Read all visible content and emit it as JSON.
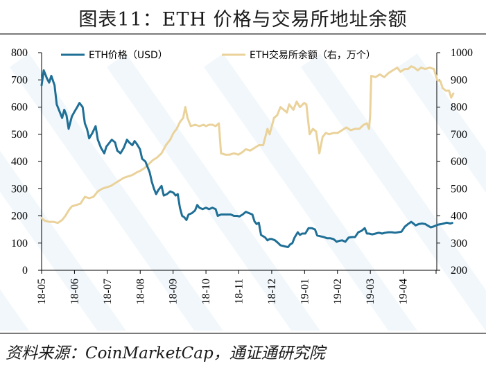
{
  "title": "图表11：ETH 价格与交易所地址余额",
  "source": "资料来源：CoinMarketCap，通证通研究院",
  "colors": {
    "price": "#1f6f96",
    "balance": "#ead29a",
    "watermark": "#e6f1f7"
  },
  "chart_data": {
    "type": "line",
    "title": "图表11：ETH 价格与交易所地址余额",
    "x_ticks": [
      "18-05",
      "18-06",
      "18-07",
      "18-08",
      "18-09",
      "18-10",
      "18-11",
      "18-12",
      "19-01",
      "19-02",
      "19-03",
      "19-04"
    ],
    "y_left": {
      "lim": [
        0,
        800
      ],
      "ticks": [
        "0",
        "100",
        "200",
        "300",
        "400",
        "500",
        "600",
        "700",
        "800"
      ]
    },
    "y_right": {
      "lim": [
        200,
        1000
      ],
      "ticks": [
        "200",
        "300",
        "400",
        "500",
        "600",
        "700",
        "800",
        "900",
        "1000"
      ]
    },
    "legend_position": "top",
    "grid": false,
    "series": [
      {
        "name": "ETH价格（USD）",
        "axis": "left",
        "points": [
          [
            "2018-05-01",
            680
          ],
          [
            "2018-05-03",
            735
          ],
          [
            "2018-05-06",
            705
          ],
          [
            "2018-05-08",
            690
          ],
          [
            "2018-05-10",
            715
          ],
          [
            "2018-05-13",
            680
          ],
          [
            "2018-05-15",
            610
          ],
          [
            "2018-05-18",
            580
          ],
          [
            "2018-05-20",
            560
          ],
          [
            "2018-05-22",
            590
          ],
          [
            "2018-05-24",
            570
          ],
          [
            "2018-05-26",
            520
          ],
          [
            "2018-05-29",
            565
          ],
          [
            "2018-05-31",
            580
          ],
          [
            "2018-06-03",
            600
          ],
          [
            "2018-06-05",
            615
          ],
          [
            "2018-06-08",
            600
          ],
          [
            "2018-06-10",
            540
          ],
          [
            "2018-06-12",
            520
          ],
          [
            "2018-06-14",
            485
          ],
          [
            "2018-06-17",
            505
          ],
          [
            "2018-06-20",
            530
          ],
          [
            "2018-06-22",
            480
          ],
          [
            "2018-06-25",
            450
          ],
          [
            "2018-06-28",
            430
          ],
          [
            "2018-06-30",
            455
          ],
          [
            "2018-07-03",
            470
          ],
          [
            "2018-07-05",
            480
          ],
          [
            "2018-07-08",
            470
          ],
          [
            "2018-07-10",
            440
          ],
          [
            "2018-07-13",
            430
          ],
          [
            "2018-07-16",
            450
          ],
          [
            "2018-07-19",
            480
          ],
          [
            "2018-07-21",
            470
          ],
          [
            "2018-07-24",
            460
          ],
          [
            "2018-07-26",
            475
          ],
          [
            "2018-07-28",
            465
          ],
          [
            "2018-07-31",
            445
          ],
          [
            "2018-08-02",
            410
          ],
          [
            "2018-08-05",
            400
          ],
          [
            "2018-08-07",
            380
          ],
          [
            "2018-08-09",
            360
          ],
          [
            "2018-08-11",
            325
          ],
          [
            "2018-08-13",
            300
          ],
          [
            "2018-08-15",
            280
          ],
          [
            "2018-08-17",
            295
          ],
          [
            "2018-08-20",
            310
          ],
          [
            "2018-08-22",
            275
          ],
          [
            "2018-08-25",
            280
          ],
          [
            "2018-08-28",
            290
          ],
          [
            "2018-08-31",
            285
          ],
          [
            "2018-09-02",
            275
          ],
          [
            "2018-09-04",
            280
          ],
          [
            "2018-09-06",
            230
          ],
          [
            "2018-09-08",
            200
          ],
          [
            "2018-09-10",
            195
          ],
          [
            "2018-09-12",
            185
          ],
          [
            "2018-09-14",
            205
          ],
          [
            "2018-09-17",
            210
          ],
          [
            "2018-09-20",
            220
          ],
          [
            "2018-09-22",
            240
          ],
          [
            "2018-09-24",
            230
          ],
          [
            "2018-09-27",
            225
          ],
          [
            "2018-09-30",
            230
          ],
          [
            "2018-10-03",
            225
          ],
          [
            "2018-10-06",
            230
          ],
          [
            "2018-10-09",
            225
          ],
          [
            "2018-10-11",
            200
          ],
          [
            "2018-10-14",
            205
          ],
          [
            "2018-10-17",
            205
          ],
          [
            "2018-10-20",
            205
          ],
          [
            "2018-10-23",
            205
          ],
          [
            "2018-10-26",
            200
          ],
          [
            "2018-10-29",
            200
          ],
          [
            "2018-10-31",
            198
          ],
          [
            "2018-11-03",
            205
          ],
          [
            "2018-11-06",
            215
          ],
          [
            "2018-11-09",
            210
          ],
          [
            "2018-11-12",
            205
          ],
          [
            "2018-11-14",
            180
          ],
          [
            "2018-11-16",
            170
          ],
          [
            "2018-11-18",
            175
          ],
          [
            "2018-11-20",
            130
          ],
          [
            "2018-11-22",
            125
          ],
          [
            "2018-11-24",
            120
          ],
          [
            "2018-11-26",
            110
          ],
          [
            "2018-11-28",
            115
          ],
          [
            "2018-11-30",
            115
          ],
          [
            "2018-12-03",
            110
          ],
          [
            "2018-12-06",
            100
          ],
          [
            "2018-12-08",
            92
          ],
          [
            "2018-12-10",
            90
          ],
          [
            "2018-12-12",
            88
          ],
          [
            "2018-12-15",
            85
          ],
          [
            "2018-12-17",
            95
          ],
          [
            "2018-12-19",
            100
          ],
          [
            "2018-12-21",
            120
          ],
          [
            "2018-12-24",
            140
          ],
          [
            "2018-12-26",
            130
          ],
          [
            "2018-12-28",
            135
          ],
          [
            "2018-12-31",
            135
          ],
          [
            "2019-01-03",
            155
          ],
          [
            "2019-01-06",
            155
          ],
          [
            "2019-01-09",
            150
          ],
          [
            "2019-01-11",
            128
          ],
          [
            "2019-01-14",
            125
          ],
          [
            "2019-01-17",
            122
          ],
          [
            "2019-01-20",
            118
          ],
          [
            "2019-01-23",
            118
          ],
          [
            "2019-01-26",
            115
          ],
          [
            "2019-01-29",
            105
          ],
          [
            "2019-01-31",
            108
          ],
          [
            "2019-02-03",
            110
          ],
          [
            "2019-02-06",
            105
          ],
          [
            "2019-02-09",
            120
          ],
          [
            "2019-02-12",
            122
          ],
          [
            "2019-02-15",
            122
          ],
          [
            "2019-02-18",
            140
          ],
          [
            "2019-02-21",
            145
          ],
          [
            "2019-02-24",
            155
          ],
          [
            "2019-02-26",
            135
          ],
          [
            "2019-02-28",
            135
          ],
          [
            "2019-03-03",
            132
          ],
          [
            "2019-03-06",
            135
          ],
          [
            "2019-03-09",
            138
          ],
          [
            "2019-03-12",
            135
          ],
          [
            "2019-03-15",
            138
          ],
          [
            "2019-03-18",
            140
          ],
          [
            "2019-03-21",
            140
          ],
          [
            "2019-03-24",
            138
          ],
          [
            "2019-03-27",
            140
          ],
          [
            "2019-03-30",
            142
          ],
          [
            "2019-04-02",
            160
          ],
          [
            "2019-04-05",
            170
          ],
          [
            "2019-04-08",
            178
          ],
          [
            "2019-04-10",
            172
          ],
          [
            "2019-04-12",
            165
          ],
          [
            "2019-04-15",
            170
          ],
          [
            "2019-04-18",
            172
          ],
          [
            "2019-04-21",
            170
          ],
          [
            "2019-04-23",
            165
          ],
          [
            "2019-04-26",
            158
          ],
          [
            "2019-04-28",
            160
          ],
          [
            "2019-04-30",
            163
          ],
          [
            "2019-05-03",
            168
          ],
          [
            "2019-05-06",
            170
          ],
          [
            "2019-05-08",
            172
          ],
          [
            "2019-05-11",
            175
          ],
          [
            "2019-05-14",
            172
          ],
          [
            "2019-05-16",
            174
          ]
        ]
      },
      {
        "name": "ETH交易所余额（右，万个）",
        "axis": "right",
        "points": [
          [
            "2018-05-01",
            392
          ],
          [
            "2018-05-04",
            382
          ],
          [
            "2018-05-08",
            378
          ],
          [
            "2018-05-12",
            378
          ],
          [
            "2018-05-16",
            374
          ],
          [
            "2018-05-20",
            385
          ],
          [
            "2018-05-23",
            400
          ],
          [
            "2018-05-26",
            420
          ],
          [
            "2018-05-29",
            435
          ],
          [
            "2018-06-02",
            440
          ],
          [
            "2018-06-06",
            445
          ],
          [
            "2018-06-10",
            470
          ],
          [
            "2018-06-14",
            465
          ],
          [
            "2018-06-18",
            470
          ],
          [
            "2018-06-22",
            490
          ],
          [
            "2018-06-26",
            500
          ],
          [
            "2018-06-30",
            505
          ],
          [
            "2018-07-04",
            510
          ],
          [
            "2018-07-08",
            520
          ],
          [
            "2018-07-12",
            530
          ],
          [
            "2018-07-16",
            540
          ],
          [
            "2018-07-20",
            545
          ],
          [
            "2018-07-24",
            550
          ],
          [
            "2018-07-28",
            560
          ],
          [
            "2018-07-31",
            565
          ],
          [
            "2018-08-04",
            575
          ],
          [
            "2018-08-08",
            590
          ],
          [
            "2018-08-12",
            605
          ],
          [
            "2018-08-16",
            615
          ],
          [
            "2018-08-20",
            630
          ],
          [
            "2018-08-24",
            660
          ],
          [
            "2018-08-28",
            680
          ],
          [
            "2018-08-31",
            705
          ],
          [
            "2018-09-03",
            720
          ],
          [
            "2018-09-06",
            745
          ],
          [
            "2018-09-09",
            760
          ],
          [
            "2018-09-11",
            800
          ],
          [
            "2018-09-13",
            760
          ],
          [
            "2018-09-16",
            730
          ],
          [
            "2018-09-20",
            735
          ],
          [
            "2018-09-24",
            730
          ],
          [
            "2018-09-28",
            735
          ],
          [
            "2018-09-30",
            730
          ],
          [
            "2018-10-03",
            735
          ],
          [
            "2018-10-06",
            735
          ],
          [
            "2018-10-09",
            730
          ],
          [
            "2018-10-12",
            740
          ],
          [
            "2018-10-14",
            630
          ],
          [
            "2018-10-18",
            625
          ],
          [
            "2018-10-22",
            625
          ],
          [
            "2018-10-26",
            630
          ],
          [
            "2018-10-30",
            625
          ],
          [
            "2018-11-03",
            635
          ],
          [
            "2018-11-06",
            645
          ],
          [
            "2018-11-10",
            640
          ],
          [
            "2018-11-14",
            650
          ],
          [
            "2018-11-18",
            660
          ],
          [
            "2018-11-22",
            660
          ],
          [
            "2018-11-26",
            720
          ],
          [
            "2018-11-28",
            700
          ],
          [
            "2018-12-02",
            760
          ],
          [
            "2018-12-05",
            770
          ],
          [
            "2018-12-08",
            800
          ],
          [
            "2018-12-11",
            790
          ],
          [
            "2018-12-14",
            780
          ],
          [
            "2018-12-16",
            810
          ],
          [
            "2018-12-20",
            790
          ],
          [
            "2018-12-23",
            820
          ],
          [
            "2018-12-26",
            800
          ],
          [
            "2018-12-30",
            815
          ],
          [
            "2019-01-01",
            810
          ],
          [
            "2019-01-04",
            700
          ],
          [
            "2019-01-07",
            720
          ],
          [
            "2019-01-10",
            710
          ],
          [
            "2019-01-13",
            630
          ],
          [
            "2019-01-16",
            690
          ],
          [
            "2019-01-19",
            705
          ],
          [
            "2019-01-22",
            700
          ],
          [
            "2019-01-26",
            705
          ],
          [
            "2019-01-30",
            705
          ],
          [
            "2019-02-03",
            715
          ],
          [
            "2019-02-07",
            725
          ],
          [
            "2019-02-11",
            715
          ],
          [
            "2019-02-15",
            720
          ],
          [
            "2019-02-19",
            720
          ],
          [
            "2019-02-23",
            735
          ],
          [
            "2019-02-26",
            740
          ],
          [
            "2019-02-28",
            720
          ],
          [
            "2019-03-01",
            770
          ],
          [
            "2019-03-02",
            915
          ],
          [
            "2019-03-06",
            910
          ],
          [
            "2019-03-10",
            920
          ],
          [
            "2019-03-14",
            910
          ],
          [
            "2019-03-18",
            925
          ],
          [
            "2019-03-22",
            935
          ],
          [
            "2019-03-26",
            945
          ],
          [
            "2019-03-29",
            930
          ],
          [
            "2019-04-02",
            940
          ],
          [
            "2019-04-05",
            940
          ],
          [
            "2019-04-08",
            950
          ],
          [
            "2019-04-11",
            945
          ],
          [
            "2019-04-14",
            935
          ],
          [
            "2019-04-17",
            945
          ],
          [
            "2019-04-21",
            940
          ],
          [
            "2019-04-25",
            945
          ],
          [
            "2019-04-29",
            940
          ],
          [
            "2019-05-02",
            900
          ],
          [
            "2019-05-05",
            895
          ],
          [
            "2019-05-07",
            870
          ],
          [
            "2019-05-10",
            860
          ],
          [
            "2019-05-13",
            860
          ],
          [
            "2019-05-15",
            835
          ],
          [
            "2019-05-17",
            850
          ]
        ]
      }
    ]
  }
}
